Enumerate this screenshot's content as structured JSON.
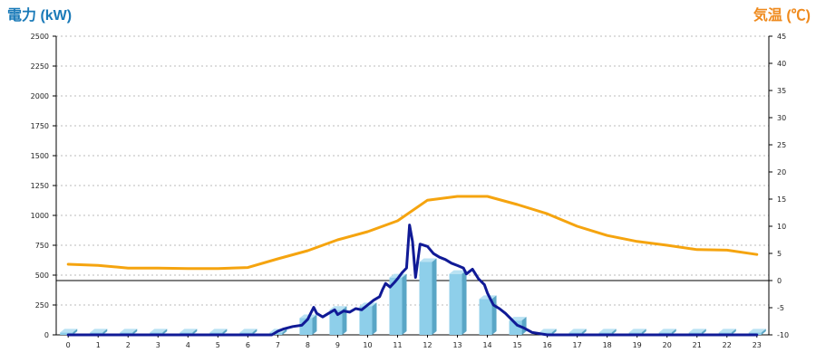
{
  "chart_data": {
    "type": "bar+line",
    "left_axis": {
      "title": "電力 (kW)",
      "color": "#1a7ab8",
      "range": [
        0,
        2500
      ],
      "ticks": [
        0,
        250,
        500,
        750,
        1000,
        1250,
        1500,
        1750,
        2000,
        2250,
        2500
      ]
    },
    "right_axis": {
      "title": "気温 (℃)",
      "color": "#ef8a1d",
      "range": [
        -10,
        45
      ],
      "ticks": [
        -10,
        -5,
        0,
        5,
        10,
        15,
        20,
        25,
        30,
        35,
        40,
        45
      ]
    },
    "x": {
      "categories": [
        "0",
        "1",
        "2",
        "3",
        "4",
        "5",
        "6",
        "7",
        "8",
        "9",
        "10",
        "11",
        "12",
        "13",
        "14",
        "15",
        "16",
        "17",
        "18",
        "19",
        "20",
        "21",
        "22",
        "23"
      ],
      "range": [
        -0.4,
        23.4
      ]
    },
    "grid": true,
    "series": [
      {
        "type": "bar3d",
        "axis": "left",
        "color": "#8ecfea",
        "values": [
          20,
          20,
          20,
          20,
          20,
          20,
          20,
          20,
          140,
          210,
          240,
          480,
          610,
          510,
          300,
          120,
          20,
          20,
          20,
          20,
          20,
          20,
          20,
          20
        ]
      },
      {
        "type": "line",
        "axis": "left",
        "color": "#101a96",
        "x": [
          0,
          1,
          2,
          3,
          4,
          5,
          6,
          6.8,
          7,
          7.2,
          7.5,
          7.8,
          8,
          8.2,
          8.3,
          8.5,
          8.7,
          8.9,
          9,
          9.2,
          9.4,
          9.6,
          9.8,
          10,
          10.2,
          10.4,
          10.5,
          10.6,
          10.75,
          10.9,
          11,
          11.15,
          11.3,
          11.4,
          11.5,
          11.6,
          11.75,
          12,
          12.2,
          12.4,
          12.6,
          12.8,
          13,
          13.2,
          13.3,
          13.5,
          13.7,
          13.9,
          14,
          14.2,
          14.4,
          14.6,
          14.8,
          15,
          15.2,
          15.5,
          16,
          17,
          18,
          19,
          20,
          21,
          22,
          23
        ],
        "values": [
          0,
          0,
          0,
          0,
          0,
          0,
          0,
          0,
          30,
          50,
          70,
          80,
          130,
          230,
          180,
          150,
          180,
          210,
          170,
          200,
          190,
          220,
          210,
          250,
          290,
          320,
          380,
          430,
          400,
          440,
          470,
          520,
          560,
          920,
          780,
          480,
          760,
          740,
          680,
          650,
          630,
          600,
          580,
          560,
          510,
          550,
          470,
          420,
          350,
          250,
          220,
          180,
          130,
          80,
          60,
          20,
          0,
          0,
          0,
          0,
          0,
          0,
          0,
          0
        ]
      },
      {
        "type": "line",
        "axis": "right",
        "color": "#f5a40f",
        "values": [
          3,
          2.8,
          2.3,
          2.3,
          2.2,
          2.2,
          2.4,
          4,
          5.5,
          7.5,
          9,
          11,
          14.8,
          15.5,
          15.5,
          14,
          12.3,
          10,
          8.3,
          7.2,
          6.5,
          5.7,
          5.6,
          4.8
        ]
      }
    ]
  }
}
